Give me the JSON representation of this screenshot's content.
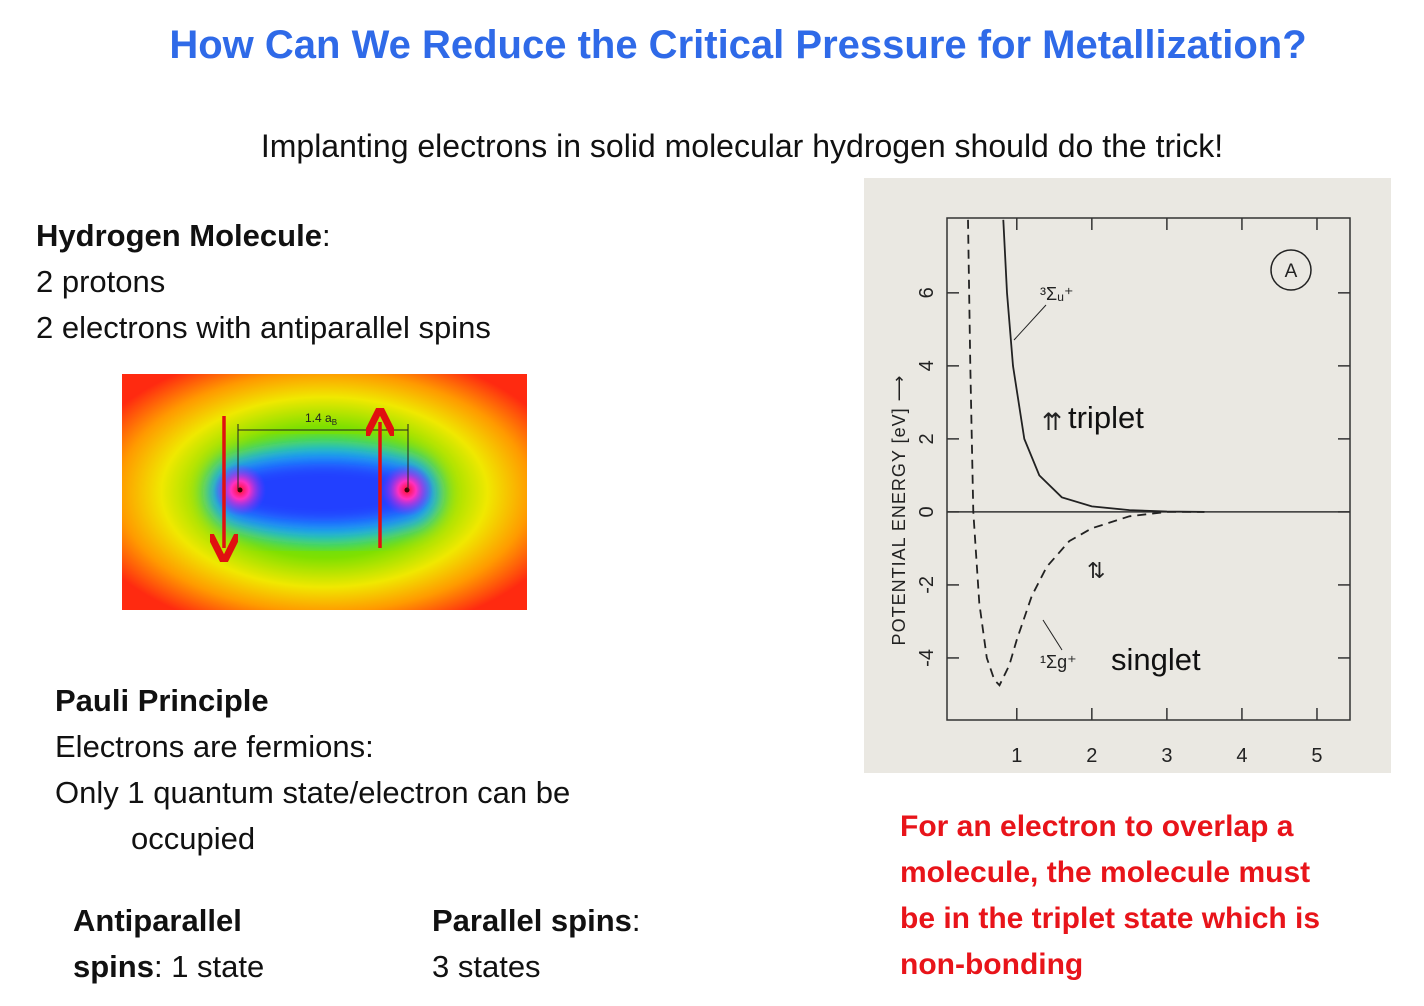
{
  "title": "How Can We Reduce the Critical Pressure for Metallization?",
  "subtitle": "Implanting electrons in solid molecular hydrogen should do the trick!",
  "hydrogen": {
    "heading": "Hydrogen Molecule",
    "colon": ":",
    "lines": [
      "2 protons",
      "2 electrons with antiparallel spins"
    ]
  },
  "figure": {
    "distance": "1.4 a",
    "distance_sub": "B"
  },
  "pauli": {
    "heading": "Pauli Principle",
    "lines": [
      "Electrons are fermions:",
      "Only 1 quantum state/electron can be",
      "occupied"
    ]
  },
  "antiparallel": {
    "label_lines": [
      "Antiparallel",
      "spins"
    ],
    "rest": ": 1 state"
  },
  "parallel": {
    "label": "Parallel spins",
    "colon": ":",
    "rest": "3 states"
  },
  "note": [
    "For an electron to overlap a",
    "molecule, the molecule must",
    "be in the triplet state which is",
    "non-bonding"
  ],
  "chart_data": {
    "type": "line",
    "y_label": "POTENTIAL  ENERGY [eV] ⟶",
    "xlim": [
      0.07,
      5.44
    ],
    "ylim": [
      -5.7,
      8.05
    ],
    "xticks": [
      1,
      2,
      3,
      4,
      5
    ],
    "yticks": [
      6,
      4,
      2,
      0,
      -2,
      -4
    ],
    "zero_line": true,
    "annotations": {
      "panel": "A",
      "triplet_term": "³Σᵤ⁺",
      "singlet_term": "¹Σg⁺",
      "triplet_spins": "⇈",
      "triplet": "triplet",
      "singlet_spins": "⇅",
      "singlet": "singlet"
    },
    "series": [
      {
        "name": "triplet",
        "color": "#222222",
        "style": "solid",
        "x": [
          0.82,
          0.87,
          0.95,
          1.1,
          1.3,
          1.6,
          2,
          2.5,
          3,
          3.5
        ],
        "values": [
          8,
          6,
          4,
          2,
          1,
          0.4,
          0.15,
          0.05,
          0.01,
          0
        ]
      },
      {
        "name": "singlet",
        "color": "#222222",
        "style": "dashed",
        "x": [
          0.35,
          0.38,
          0.42,
          0.5,
          0.6,
          0.7,
          0.77,
          0.9,
          1,
          1.2,
          1.4,
          1.7,
          2,
          2.5,
          3,
          3.5
        ],
        "values": [
          8,
          4,
          0,
          -2.5,
          -4,
          -4.6,
          -4.75,
          -4.2,
          -3.5,
          -2.3,
          -1.5,
          -0.8,
          -0.45,
          -0.12,
          0,
          0
        ]
      }
    ]
  }
}
